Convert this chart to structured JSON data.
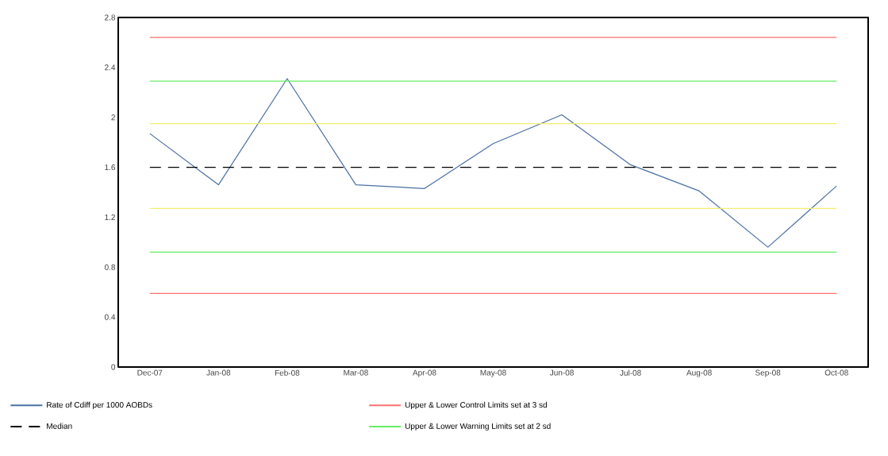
{
  "chart_data": {
    "type": "line",
    "categories": [
      "Dec-07",
      "Jan-08",
      "Feb-08",
      "Mar-08",
      "Apr-08",
      "May-08",
      "Jun-08",
      "Jul-08",
      "Aug-08",
      "Sep-08",
      "Oct-08"
    ],
    "series": [
      {
        "name": "Rate of Cdiff per 1000 AOBDs",
        "color": "#4a6fa5",
        "line_style": "solid",
        "values": [
          1.87,
          1.46,
          2.31,
          1.46,
          1.43,
          1.79,
          2.02,
          1.62,
          1.41,
          0.96,
          1.45
        ]
      },
      {
        "name": "Upper & Lower Control Limits set at 3 sd",
        "color": "#ff7070",
        "line_style": "solid",
        "values": [
          2.64,
          2.64,
          2.64,
          2.64,
          2.64,
          2.64,
          2.64,
          2.64,
          2.64,
          2.64,
          2.64
        ]
      },
      {
        "name": "Median",
        "color": "#000000",
        "line_style": "dashed",
        "values": [
          1.6,
          1.6,
          1.6,
          1.6,
          1.6,
          1.6,
          1.6,
          1.6,
          1.6,
          1.6,
          1.6
        ]
      },
      {
        "name": "Upper & Lower Warning Limits set at 2 sd",
        "color": "#66ee66",
        "line_style": "solid",
        "values": [
          2.29,
          2.29,
          2.29,
          2.29,
          2.29,
          2.29,
          2.29,
          2.29,
          2.29,
          2.29,
          2.29
        ]
      },
      {
        "color": "#ff7070",
        "line_style": "solid",
        "values": [
          0.59,
          0.59,
          0.59,
          0.59,
          0.59,
          0.59,
          0.59,
          0.59,
          0.59,
          0.59,
          0.59
        ]
      },
      {
        "color": "#66ee66",
        "line_style": "solid",
        "values": [
          0.92,
          0.92,
          0.92,
          0.92,
          0.92,
          0.92,
          0.92,
          0.92,
          0.92,
          0.92,
          0.92
        ]
      },
      {
        "color": "#f2ee70",
        "line_style": "solid",
        "values": [
          1.95,
          1.95,
          1.95,
          1.95,
          1.95,
          1.95,
          1.95,
          1.95,
          1.95,
          1.95,
          1.95
        ]
      },
      {
        "color": "#f2ee70",
        "line_style": "solid",
        "values": [
          1.27,
          1.27,
          1.27,
          1.27,
          1.27,
          1.27,
          1.27,
          1.27,
          1.27,
          1.27,
          1.27
        ]
      }
    ],
    "ylim": [
      0,
      2.8
    ],
    "yticks": [
      0,
      0.4,
      0.8,
      1.2,
      1.6,
      2,
      2.4,
      2.8
    ],
    "grid": false,
    "legend": "bottom",
    "marker": "none"
  }
}
